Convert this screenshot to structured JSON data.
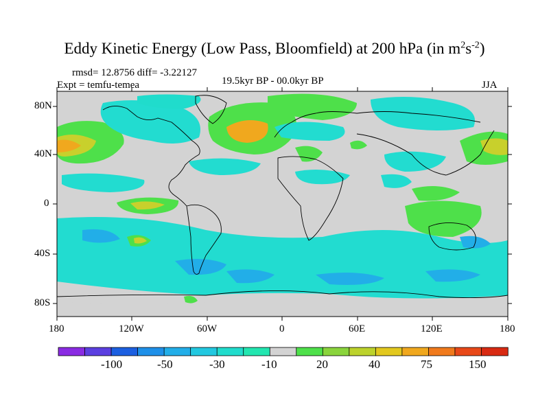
{
  "title": {
    "main": "Eddy Kinetic Energy (Low Pass, Bloomfield) at 200 hPa (in m",
    "sup1": "2",
    "mid": "s",
    "sup2": "-2",
    "close": ")"
  },
  "stats": "rmsd= 12.8756 diff= -3.22127",
  "expt": "Expt = temfu-temea",
  "period": "19.5kyr BP - 00.0kyr BP",
  "season": "JJA",
  "lat_labels": [
    "80N",
    "40N",
    "0",
    "40S",
    "80S"
  ],
  "lon_labels": [
    "180",
    "120W",
    "60W",
    "0",
    "60E",
    "120E",
    "180"
  ],
  "colorbar": {
    "labels": [
      "-100",
      "-50",
      "-30",
      "-10",
      "20",
      "40",
      "75",
      "150"
    ],
    "colors": [
      "#8a2be2",
      "#5b3fe0",
      "#1c5fe0",
      "#1e90e8",
      "#22aee8",
      "#22c8e0",
      "#20dccc",
      "#22e6b0",
      "#d3d3d3",
      "#4ee04a",
      "#8ad43c",
      "#bcd22c",
      "#e2c81e",
      "#f0a81e",
      "#f07a1c",
      "#e84818",
      "#d82a12"
    ]
  },
  "palette": {
    "land_gray": "#d3d3d3",
    "cyan": "#22dcd0",
    "green": "#4ee04a",
    "yellow": "#c8d02c",
    "orange": "#f0a81e",
    "blue": "#22aee8"
  }
}
